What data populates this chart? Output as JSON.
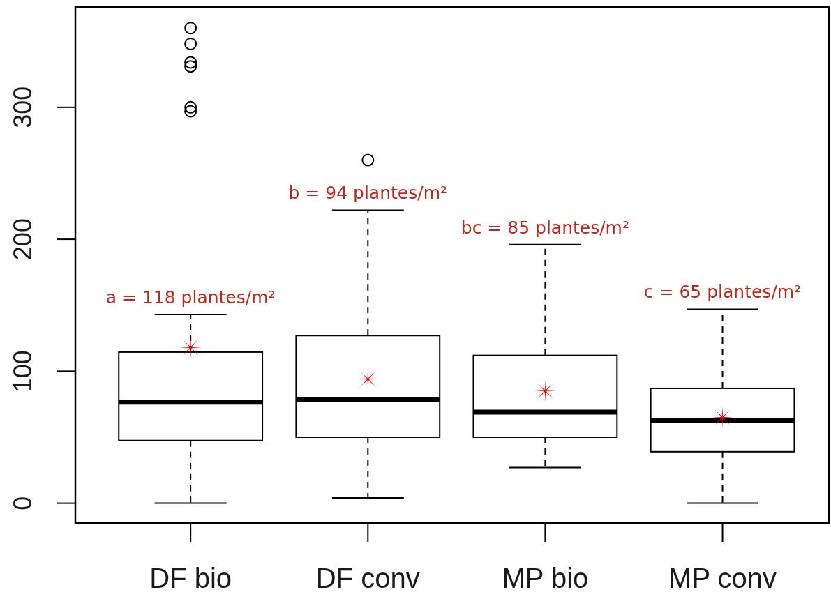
{
  "chart_data": {
    "type": "box",
    "categories": [
      "DF bio",
      "DF conv",
      "MP bio",
      "MP conv"
    ],
    "ylim": [
      -15,
      376
    ],
    "yticks": [
      0,
      100,
      200,
      300
    ],
    "series": [
      {
        "type": "box",
        "color": "#000000",
        "boxes": [
          {
            "low": 0,
            "q1": 47.5,
            "median": 76.5,
            "q3": 114.5,
            "high": 143,
            "outliers": [
              360,
              348,
              334,
              331,
              300,
              297
            ]
          },
          {
            "low": 4,
            "q1": 50,
            "median": 78.5,
            "q3": 127,
            "high": 222,
            "outliers": [
              260
            ]
          },
          {
            "low": 27,
            "q1": 50,
            "median": 69,
            "q3": 112,
            "high": 196
          },
          {
            "low": 0,
            "q1": 39,
            "median": 63,
            "q3": 87,
            "high": 147
          }
        ]
      },
      {
        "type": "scatter",
        "color": "#ff0000",
        "marker": "star",
        "x": [
          "DF bio",
          "DF conv",
          "MP bio",
          "MP conv"
        ],
        "values": [
          118,
          94,
          85,
          65
        ]
      }
    ],
    "annotations": [
      "a = 118 plantes/m²",
      "b = 94 plantes/m²",
      "bc = 85 plantes/m²",
      "c = 65 plantes/m²"
    ]
  }
}
